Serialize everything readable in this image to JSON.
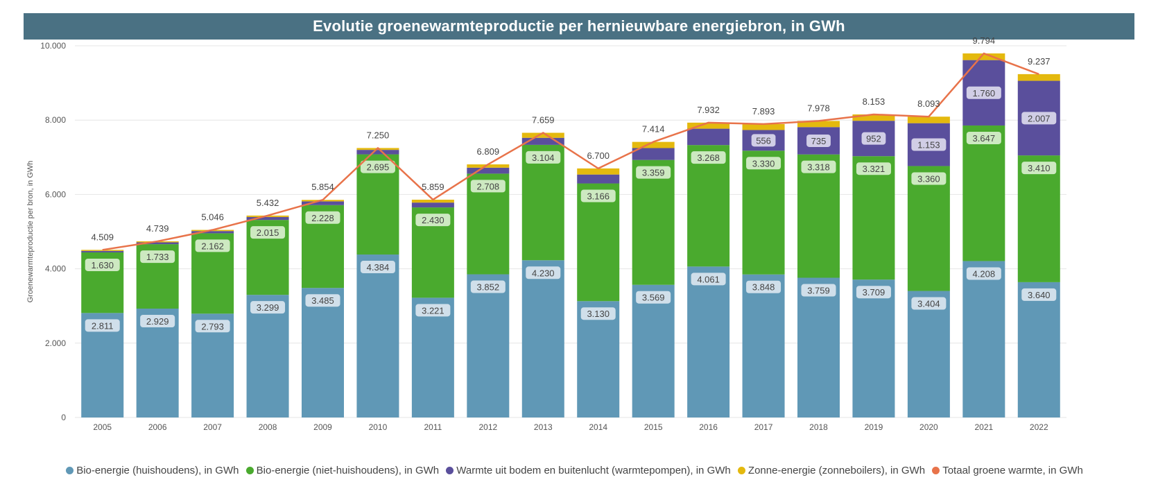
{
  "chart_data": {
    "type": "bar",
    "stacked": true,
    "title": "Evolutie groenewarmteproductie per hernieuwbare energiebron, in GWh",
    "ylabel": "Groenewarmteproductie per bron, in GWh",
    "xlabel": "",
    "ylim": [
      0,
      10000
    ],
    "yticks": [
      "0",
      "2.000",
      "4.000",
      "6.000",
      "8.000",
      "10.000"
    ],
    "grid": true,
    "legend_position": "bottom",
    "categories": [
      "2005",
      "2006",
      "2007",
      "2008",
      "2009",
      "2010",
      "2011",
      "2012",
      "2013",
      "2014",
      "2015",
      "2016",
      "2017",
      "2018",
      "2019",
      "2020",
      "2021",
      "2022"
    ],
    "series": [
      {
        "name": "Bio-energie (huishoudens), in GWh",
        "color": "#6098b6",
        "values": [
          2811,
          2929,
          2793,
          3299,
          3485,
          4384,
          3221,
          3852,
          4230,
          3130,
          3569,
          4061,
          3848,
          3759,
          3709,
          3404,
          4208,
          3640
        ],
        "labels": [
          "2.811",
          "2.929",
          "2.793",
          "3.299",
          "3.485",
          "4.384",
          "3.221",
          "3.852",
          "4.230",
          "3.130",
          "3.569",
          "4.061",
          "3.848",
          "3.759",
          "3.709",
          "3.404",
          "4.208",
          "3.640"
        ]
      },
      {
        "name": "Bio-energie (niet-huishoudens), in GWh",
        "color": "#4aaa2e",
        "values": [
          1630,
          1733,
          2162,
          2015,
          2228,
          2695,
          2430,
          2708,
          3104,
          3166,
          3359,
          3268,
          3330,
          3318,
          3321,
          3360,
          3647,
          3410
        ],
        "labels": [
          "1.630",
          "1.733",
          "2.162",
          "2.015",
          "2.228",
          "2.695",
          "2.430",
          "2.708",
          "3.104",
          "3.166",
          "3.359",
          "3.268",
          "3.330",
          "3.318",
          "3.321",
          "3.360",
          "3.647",
          "3.410"
        ]
      },
      {
        "name": "Warmte uit bodem en buitenlucht (warmtepompen), in GWh",
        "color": "#5a4f9c",
        "values": [
          40,
          50,
          60,
          80,
          100,
          120,
          130,
          160,
          190,
          240,
          320,
          440,
          556,
          735,
          952,
          1153,
          1760,
          2007
        ],
        "labels": [
          "",
          "",
          "",
          "",
          "",
          "",
          "",
          "",
          "",
          "",
          "",
          "",
          "556",
          "735",
          "952",
          "1.153",
          "1.760",
          "2.007"
        ]
      },
      {
        "name": "Zonne-energie (zonneboilers), in GWh",
        "color": "#e4b90e",
        "values": [
          28,
          27,
          31,
          38,
          41,
          51,
          78,
          89,
          135,
          164,
          166,
          163,
          159,
          166,
          171,
          176,
          179,
          180
        ],
        "labels": []
      }
    ],
    "line_series": {
      "name": "Totaal groene warmte, in GWh",
      "color": "#e8734a",
      "values": [
        4509,
        4739,
        5046,
        5432,
        5854,
        7250,
        5859,
        6809,
        7659,
        6700,
        7414,
        7932,
        7893,
        7978,
        8153,
        8093,
        9794,
        9237
      ],
      "labels": [
        "4.509",
        "4.739",
        "5.046",
        "5.432",
        "5.854",
        "7.250",
        "5.859",
        "6.809",
        "7.659",
        "6.700",
        "7.414",
        "7.932",
        "7.893",
        "7.978",
        "8.153",
        "8.093",
        "9.794",
        "9.237"
      ]
    }
  }
}
